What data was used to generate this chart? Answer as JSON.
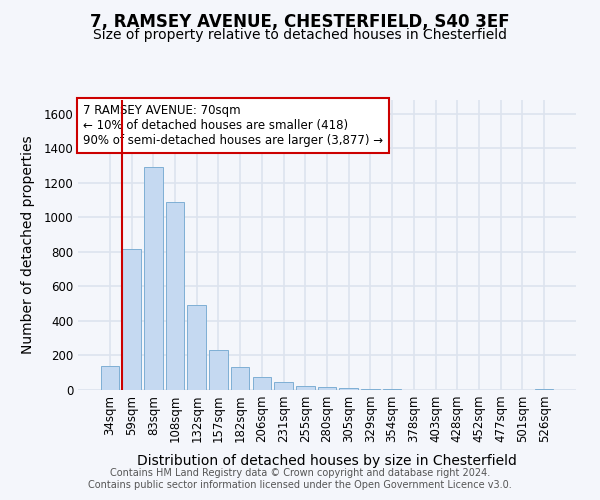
{
  "title1": "7, RAMSEY AVENUE, CHESTERFIELD, S40 3EF",
  "title2": "Size of property relative to detached houses in Chesterfield",
  "xlabel": "Distribution of detached houses by size in Chesterfield",
  "ylabel": "Number of detached properties",
  "categories": [
    "34sqm",
    "59sqm",
    "83sqm",
    "108sqm",
    "132sqm",
    "157sqm",
    "182sqm",
    "206sqm",
    "231sqm",
    "255sqm",
    "280sqm",
    "305sqm",
    "329sqm",
    "354sqm",
    "378sqm",
    "403sqm",
    "428sqm",
    "452sqm",
    "477sqm",
    "501sqm",
    "526sqm"
  ],
  "values": [
    140,
    815,
    1290,
    1090,
    490,
    230,
    135,
    75,
    45,
    25,
    18,
    10,
    8,
    5,
    0,
    0,
    0,
    0,
    0,
    0,
    5
  ],
  "bar_color": "#c5d9f1",
  "bar_edge_color": "#7fafd4",
  "vline_color": "#cc0000",
  "annotation_text": "7 RAMSEY AVENUE: 70sqm\n← 10% of detached houses are smaller (418)\n90% of semi-detached houses are larger (3,877) →",
  "annotation_box_color": "#ffffff",
  "annotation_box_edge_color": "#cc0000",
  "ylim": [
    0,
    1680
  ],
  "yticks": [
    0,
    200,
    400,
    600,
    800,
    1000,
    1200,
    1400,
    1600
  ],
  "footer1": "Contains HM Land Registry data © Crown copyright and database right 2024.",
  "footer2": "Contains public sector information licensed under the Open Government Licence v3.0.",
  "bg_color": "#f4f6fb",
  "plot_bg_color": "#f4f6fb",
  "grid_color": "#dde3ee",
  "title1_fontsize": 12,
  "title2_fontsize": 10,
  "tick_fontsize": 8.5,
  "label_fontsize": 10,
  "annotation_fontsize": 8.5,
  "footer_fontsize": 7
}
